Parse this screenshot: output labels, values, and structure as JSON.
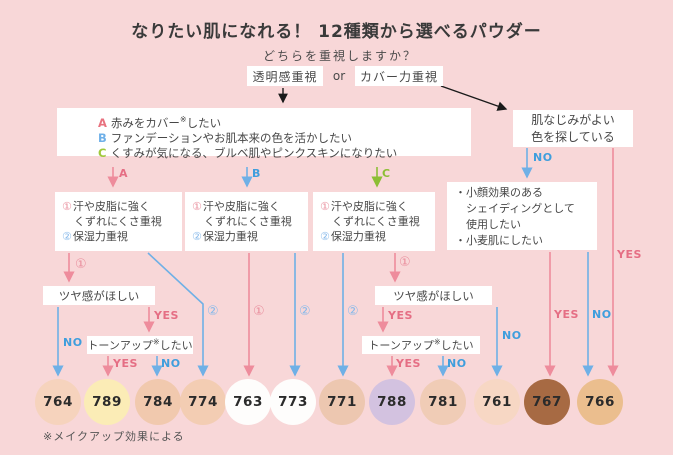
{
  "title": "なりたい肌になれる！ 12種類から選べるパウダー",
  "question": "どちらを重視しますか？",
  "choice": {
    "left": "透明感重視",
    "or": "or",
    "right": "カバー力重視"
  },
  "abc": {
    "a": {
      "key": "A",
      "pre": "赤みをカバー",
      "sup": "※",
      "post": "したい"
    },
    "b": {
      "key": "B",
      "text": "ファンデーションやお肌本来の色を活かしたい"
    },
    "c": {
      "key": "C",
      "text": "くすみが気になる、ブルベ肌やピンクスキンになりたい"
    }
  },
  "priority_box": {
    "n1": "①",
    "line1": "汗や皮脂に強く",
    "line2": "くずれにくさ重視",
    "n2": "②",
    "line3": "保湿力重視"
  },
  "right_branch": {
    "question": {
      "line1": "肌なじみがよい",
      "line2": "色を探している"
    },
    "shading": {
      "line1": "・小顔効果のある",
      "line2": "　シェイディングとして",
      "line3": "　使用したい",
      "line4": "・小麦肌にしたい"
    }
  },
  "tsuya": "ツヤ感がほしい",
  "tone_up": {
    "pre": "トーンアップ",
    "sup": "※",
    "post": "したい"
  },
  "labels": {
    "yes": "YES",
    "no": "NO",
    "a": "A",
    "b": "B",
    "c": "C",
    "n1": "①",
    "n2": "②"
  },
  "footnote": "※メイクアップ効果による",
  "swatches": [
    {
      "id": "764",
      "color": "#f6d3bd"
    },
    {
      "id": "789",
      "color": "#fbecb6"
    },
    {
      "id": "784",
      "color": "#f1c9ae"
    },
    {
      "id": "774",
      "color": "#f3cdb3"
    },
    {
      "id": "763",
      "color": "#fefdfc"
    },
    {
      "id": "773",
      "color": "#fefdfc"
    },
    {
      "id": "771",
      "color": "#edc7b0"
    },
    {
      "id": "788",
      "color": "#d3c2e0"
    },
    {
      "id": "781",
      "color": "#f0ccb6"
    },
    {
      "id": "761",
      "color": "#f7d7c4"
    },
    {
      "id": "767",
      "color": "#a76a43"
    },
    {
      "id": "766",
      "color": "#ebbe8e"
    }
  ],
  "colors": {
    "pink_line": "#ee8c9c",
    "blue_line": "#6fb0e6",
    "green_line": "#8cbe35",
    "black_line": "#1a1a1a",
    "background": "#f8d7d8"
  }
}
